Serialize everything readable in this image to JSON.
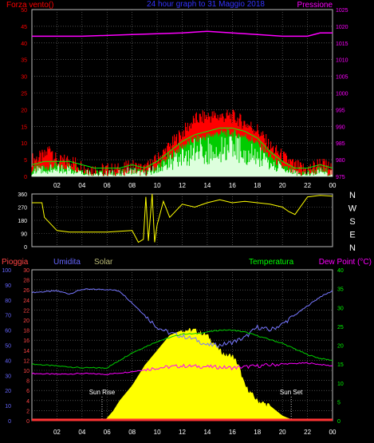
{
  "colors": {
    "wind": "#ff0000",
    "gust": "#ff0000",
    "avg": "#00cc00",
    "avgfill": "#ddffdd",
    "pressure": "#ff00ff",
    "direction": "#ffff00",
    "humidity": "#7777ff",
    "temperature": "#00cc00",
    "dewpoint": "#ff00ff",
    "solar": "#ffff00",
    "rain": "#ff3333",
    "axis_rain": "#ff4444",
    "axis_hum": "#6666ff",
    "axis_temp": "#00ff00",
    "grid": "#777777",
    "text": "#ffffff"
  },
  "labels": {
    "title": "24 hour graph to 31 Maggio 2018",
    "wind_axis": "Forza vento()",
    "pressure_axis": "Pressione",
    "rain_axis": "Pioggia",
    "hum_axis": "Umidita",
    "solar_axis": "Solar",
    "temp_axis": "Temperatura",
    "dew_axis": "Dew Point (°C)",
    "sun_rise": "Sun Rise",
    "sun_set": "Sun Set",
    "compass": [
      "N",
      "W",
      "S",
      "E",
      "N"
    ],
    "hour_labels": [
      "02",
      "04",
      "06",
      "08",
      "10",
      "12",
      "14",
      "16",
      "18",
      "20",
      "22",
      "00"
    ]
  },
  "chart_data": [
    {
      "type": "line",
      "name": "wind-pressure",
      "x_hours": [
        0,
        2,
        4,
        6,
        8,
        10,
        12,
        14,
        16,
        18,
        20,
        22,
        24
      ],
      "hour_tick_labels": [
        "02",
        "04",
        "06",
        "08",
        "10",
        "12",
        "14",
        "16",
        "18",
        "20",
        "22",
        "00"
      ],
      "y_left_ticks": [
        0,
        5,
        10,
        15,
        20,
        25,
        30,
        35,
        40,
        45,
        50
      ],
      "y_left_lim": [
        0,
        50
      ],
      "y_right_ticks": [
        975,
        980,
        985,
        990,
        995,
        1000,
        1005,
        1010,
        1015,
        1020,
        1025
      ],
      "y_right_lim": [
        975,
        1025
      ],
      "series": [
        {
          "name": "Forza vento",
          "role": "gust",
          "hours": [
            0,
            1,
            1.5,
            2,
            3,
            4,
            5,
            6,
            7,
            8,
            9,
            10,
            11,
            12,
            13,
            14,
            15,
            16,
            17,
            18,
            19,
            20,
            21,
            22,
            23,
            24
          ],
          "values": [
            5,
            6,
            9,
            4,
            5,
            3,
            2,
            2,
            2,
            3,
            2,
            5,
            9,
            13,
            17,
            18,
            18,
            18,
            16,
            14,
            9,
            6,
            3,
            2,
            4,
            2
          ]
        },
        {
          "name": "avg",
          "role": "avg",
          "hours": [
            0,
            1,
            2,
            3,
            4,
            5,
            6,
            7,
            8,
            9,
            10,
            11,
            12,
            13,
            14,
            15,
            16,
            17,
            18,
            19,
            20,
            21,
            22,
            23,
            24
          ],
          "values": [
            2,
            3,
            3,
            3,
            2,
            1,
            1,
            1,
            2,
            1,
            3,
            6,
            9,
            11,
            12,
            13,
            13,
            12,
            10,
            6,
            3,
            1,
            1,
            2,
            1
          ]
        },
        {
          "name": "Pressione",
          "role": "pressure",
          "hours": [
            0,
            4,
            8,
            12,
            14,
            16,
            18,
            20,
            22,
            23,
            24
          ],
          "values": [
            1017,
            1017,
            1017.5,
            1018,
            1018.5,
            1018,
            1017.5,
            1017,
            1017,
            1018,
            1018
          ]
        }
      ]
    },
    {
      "type": "scatter",
      "name": "wind-direction",
      "x_hours": [
        0,
        2,
        4,
        6,
        8,
        10,
        12,
        14,
        16,
        18,
        20,
        22,
        24
      ],
      "y_ticks": [
        0,
        90,
        180,
        270,
        360
      ],
      "y_lim": [
        0,
        360
      ],
      "series": [
        {
          "name": "direction",
          "hours": [
            0,
            0.8,
            1,
            2,
            3,
            4,
            5,
            6,
            7,
            8,
            8.5,
            8.9,
            9.1,
            9.3,
            9.6,
            9.8,
            10,
            10.5,
            11,
            12,
            13,
            14,
            15,
            16,
            17,
            18,
            19,
            20,
            20.5,
            21,
            22,
            23,
            24
          ],
          "values": [
            300,
            300,
            200,
            110,
            100,
            100,
            100,
            100,
            105,
            110,
            30,
            50,
            340,
            40,
            360,
            30,
            150,
            310,
            200,
            290,
            270,
            300,
            320,
            300,
            310,
            300,
            290,
            270,
            240,
            220,
            340,
            350,
            345
          ]
        }
      ]
    },
    {
      "type": "line",
      "name": "rain-humidity-solar-temperature",
      "x_hours": [
        0,
        2,
        4,
        6,
        8,
        10,
        12,
        14,
        16,
        18,
        20,
        22,
        24
      ],
      "y_rain_ticks": [
        0,
        2,
        4,
        6,
        8,
        10,
        12,
        14,
        16,
        18,
        20,
        22,
        24,
        26,
        28,
        30
      ],
      "y_rain_lim": [
        0,
        30
      ],
      "y_hum_ticks": [
        0,
        10,
        20,
        30,
        40,
        50,
        60,
        70,
        80,
        90,
        100
      ],
      "y_hum_lim": [
        0,
        100
      ],
      "y_temp_ticks": [
        0,
        5,
        10,
        15,
        20,
        25,
        30,
        35,
        40
      ],
      "y_temp_lim": [
        0,
        40
      ],
      "sun_rise_hour": 5.6,
      "sun_set_hour": 20.7,
      "series": [
        {
          "name": "Umidita",
          "hours": [
            0,
            2,
            3,
            4,
            5,
            6,
            7,
            8,
            9,
            10,
            11,
            12,
            13,
            14,
            15,
            16,
            17,
            18,
            19,
            20,
            21,
            22,
            23,
            24
          ],
          "values": [
            85,
            86,
            84,
            87,
            87,
            87,
            86,
            78,
            70,
            62,
            58,
            56,
            54,
            50,
            50,
            52,
            55,
            62,
            60,
            64,
            70,
            76,
            82,
            86
          ]
        },
        {
          "name": "Temperatura",
          "hours": [
            0,
            2,
            4,
            5,
            6,
            7,
            8,
            9,
            10,
            11,
            12,
            13,
            14,
            15,
            16,
            17,
            18,
            19,
            20,
            21,
            22,
            23,
            24
          ],
          "values": [
            15,
            14.5,
            14,
            14,
            14,
            16,
            18,
            19.5,
            21,
            22,
            23,
            23,
            23.5,
            24,
            24,
            23.5,
            22.5,
            21.5,
            20.5,
            19,
            17.5,
            16.5,
            16
          ]
        },
        {
          "name": "Dew Point",
          "hours": [
            0,
            2,
            4,
            6,
            8,
            10,
            12,
            14,
            16,
            18,
            20,
            22,
            24
          ],
          "values": [
            12.5,
            12.3,
            12.5,
            12.3,
            13,
            14,
            14.5,
            14.3,
            14,
            14.5,
            15,
            15.3,
            14.5
          ]
        },
        {
          "name": "Solar",
          "hours": [
            5.8,
            6.5,
            7,
            8,
            9,
            10,
            11,
            12,
            13,
            14,
            15,
            15.5,
            16,
            16.5,
            17,
            18,
            19,
            20,
            21
          ],
          "values": [
            0,
            2,
            4,
            7,
            11,
            14,
            17,
            18,
            18,
            17,
            14,
            13,
            13,
            11,
            7,
            4,
            3,
            1,
            0
          ]
        },
        {
          "name": "Pioggia",
          "hours": [
            0,
            24
          ],
          "values": [
            0,
            0
          ]
        }
      ]
    }
  ]
}
